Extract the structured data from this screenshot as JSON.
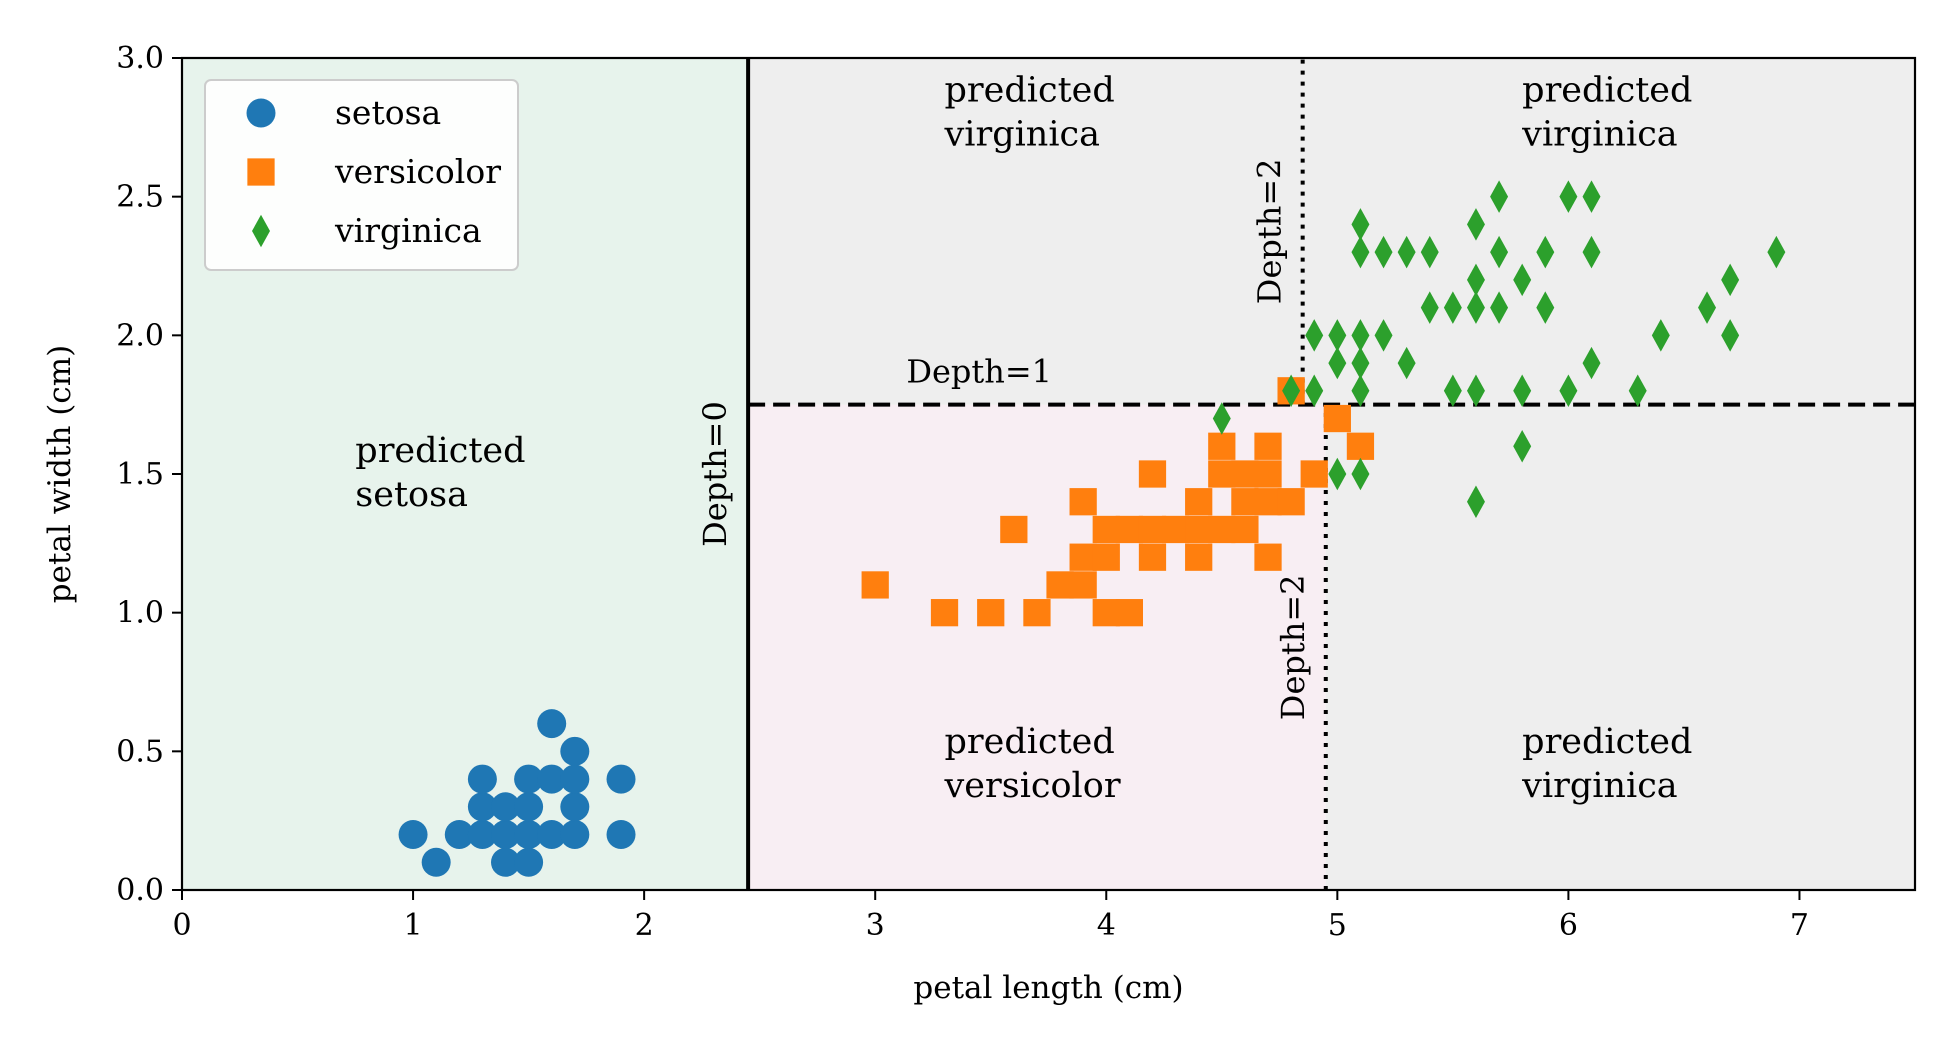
{
  "chart_data": {
    "type": "scatter",
    "xlabel": "petal length (cm)",
    "ylabel": "petal width (cm)",
    "xlim": [
      0,
      7.5
    ],
    "ylim": [
      0,
      3.0
    ],
    "xticks": [
      0,
      1,
      2,
      3,
      4,
      5,
      6,
      7
    ],
    "xtick_labels": [
      "0",
      "1",
      "2",
      "3",
      "4",
      "5",
      "6",
      "7"
    ],
    "yticks": [
      0,
      0.5,
      1.0,
      1.5,
      2.0,
      2.5,
      3.0
    ],
    "ytick_labels": [
      "0.0",
      "0.5",
      "1.0",
      "1.5",
      "2.0",
      "2.5",
      "3.0"
    ],
    "grid": false,
    "legend": {
      "placement": "top-left",
      "entries": [
        "setosa",
        "versicolor",
        "virginica"
      ]
    },
    "colors": {
      "setosa": "#1f77b4",
      "versicolor": "#ff7f0e",
      "virginica": "#2ca02c",
      "region_setosa": "#e7f3ec",
      "region_versicolor": "#f8eef3",
      "region_virginica": "#eeeeee"
    },
    "series": [
      {
        "name": "setosa",
        "marker": "circle",
        "points": [
          [
            1.0,
            0.2
          ],
          [
            1.1,
            0.1
          ],
          [
            1.2,
            0.2
          ],
          [
            1.3,
            0.2
          ],
          [
            1.3,
            0.3
          ],
          [
            1.3,
            0.4
          ],
          [
            1.4,
            0.1
          ],
          [
            1.4,
            0.2
          ],
          [
            1.4,
            0.3
          ],
          [
            1.5,
            0.1
          ],
          [
            1.5,
            0.2
          ],
          [
            1.5,
            0.3
          ],
          [
            1.5,
            0.4
          ],
          [
            1.6,
            0.2
          ],
          [
            1.6,
            0.4
          ],
          [
            1.6,
            0.6
          ],
          [
            1.7,
            0.2
          ],
          [
            1.7,
            0.3
          ],
          [
            1.7,
            0.4
          ],
          [
            1.7,
            0.5
          ],
          [
            1.9,
            0.2
          ],
          [
            1.9,
            0.4
          ]
        ]
      },
      {
        "name": "versicolor",
        "marker": "square",
        "points": [
          [
            3.0,
            1.1
          ],
          [
            3.3,
            1.0
          ],
          [
            3.5,
            1.0
          ],
          [
            3.6,
            1.3
          ],
          [
            3.7,
            1.0
          ],
          [
            3.8,
            1.1
          ],
          [
            3.9,
            1.1
          ],
          [
            3.9,
            1.2
          ],
          [
            3.9,
            1.4
          ],
          [
            4.0,
            1.0
          ],
          [
            4.0,
            1.2
          ],
          [
            4.0,
            1.3
          ],
          [
            4.1,
            1.0
          ],
          [
            4.1,
            1.3
          ],
          [
            4.2,
            1.2
          ],
          [
            4.2,
            1.3
          ],
          [
            4.2,
            1.5
          ],
          [
            4.3,
            1.3
          ],
          [
            4.4,
            1.2
          ],
          [
            4.4,
            1.3
          ],
          [
            4.4,
            1.4
          ],
          [
            4.5,
            1.3
          ],
          [
            4.5,
            1.5
          ],
          [
            4.5,
            1.6
          ],
          [
            4.6,
            1.3
          ],
          [
            4.6,
            1.4
          ],
          [
            4.6,
            1.5
          ],
          [
            4.7,
            1.2
          ],
          [
            4.7,
            1.4
          ],
          [
            4.7,
            1.5
          ],
          [
            4.7,
            1.6
          ],
          [
            4.8,
            1.4
          ],
          [
            4.8,
            1.8
          ],
          [
            4.9,
            1.5
          ],
          [
            5.0,
            1.7
          ],
          [
            5.1,
            1.6
          ]
        ]
      },
      {
        "name": "virginica",
        "marker": "diamond",
        "points": [
          [
            4.5,
            1.7
          ],
          [
            4.8,
            1.8
          ],
          [
            4.9,
            1.8
          ],
          [
            5.0,
            1.5
          ],
          [
            4.9,
            2.0
          ],
          [
            5.0,
            1.9
          ],
          [
            5.0,
            2.0
          ],
          [
            5.1,
            1.5
          ],
          [
            5.1,
            1.8
          ],
          [
            5.1,
            1.9
          ],
          [
            5.1,
            2.0
          ],
          [
            5.1,
            2.3
          ],
          [
            5.1,
            2.4
          ],
          [
            5.2,
            2.0
          ],
          [
            5.2,
            2.3
          ],
          [
            5.3,
            1.9
          ],
          [
            5.3,
            2.3
          ],
          [
            5.4,
            2.1
          ],
          [
            5.4,
            2.3
          ],
          [
            5.5,
            1.8
          ],
          [
            5.5,
            2.1
          ],
          [
            5.6,
            1.4
          ],
          [
            5.6,
            1.8
          ],
          [
            5.6,
            2.1
          ],
          [
            5.6,
            2.2
          ],
          [
            5.6,
            2.4
          ],
          [
            5.7,
            2.1
          ],
          [
            5.7,
            2.3
          ],
          [
            5.7,
            2.5
          ],
          [
            5.8,
            1.6
          ],
          [
            5.8,
            1.8
          ],
          [
            5.8,
            2.2
          ],
          [
            5.9,
            2.1
          ],
          [
            5.9,
            2.3
          ],
          [
            6.0,
            1.8
          ],
          [
            6.0,
            2.5
          ],
          [
            6.1,
            1.9
          ],
          [
            6.1,
            2.3
          ],
          [
            6.1,
            2.5
          ],
          [
            6.3,
            1.8
          ],
          [
            6.4,
            2.0
          ],
          [
            6.6,
            2.1
          ],
          [
            6.7,
            2.0
          ],
          [
            6.7,
            2.2
          ],
          [
            6.9,
            2.3
          ]
        ]
      }
    ],
    "regions": [
      {
        "name": "setosa",
        "x": [
          0,
          2.45
        ],
        "y": [
          0,
          3.0
        ]
      },
      {
        "name": "versicolor",
        "x": [
          2.45,
          4.95
        ],
        "y": [
          0,
          1.75
        ]
      },
      {
        "name": "virginica",
        "x": [
          4.95,
          7.5
        ],
        "y": [
          0,
          1.75
        ]
      },
      {
        "name": "virginica",
        "x": [
          2.45,
          7.5
        ],
        "y": [
          1.75,
          3.0
        ]
      }
    ],
    "decision_boundaries": [
      {
        "label": "Depth=0",
        "axis": "x",
        "value": 2.45,
        "y_range": [
          0,
          3.0
        ],
        "style": "solid"
      },
      {
        "label": "Depth=1",
        "axis": "y",
        "value": 1.75,
        "x_range": [
          2.45,
          7.5
        ],
        "style": "dashed"
      },
      {
        "label": "Depth=2",
        "axis": "x",
        "value": 4.95,
        "y_range": [
          0,
          1.75
        ],
        "style": "dotted"
      },
      {
        "label": "Depth=2",
        "axis": "x",
        "value": 4.85,
        "y_range": [
          1.75,
          3.0
        ],
        "style": "dotted"
      }
    ],
    "annotations": [
      {
        "lines": [
          "predicted",
          "setosa"
        ],
        "x": 0.75,
        "y": 1.5
      },
      {
        "lines": [
          "predicted",
          "versicolor"
        ],
        "x": 3.3,
        "y": 0.45
      },
      {
        "lines": [
          "predicted",
          "virginica"
        ],
        "x": 3.3,
        "y": 2.8
      },
      {
        "lines": [
          "predicted",
          "virginica"
        ],
        "x": 5.8,
        "y": 2.8
      },
      {
        "lines": [
          "predicted",
          "virginica"
        ],
        "x": 5.8,
        "y": 0.45
      }
    ]
  }
}
